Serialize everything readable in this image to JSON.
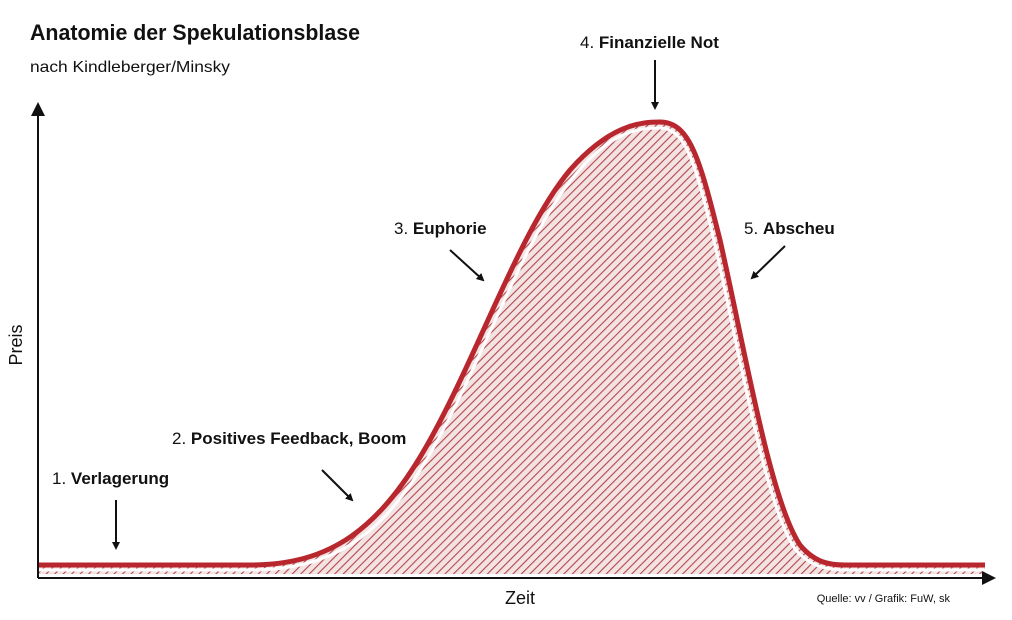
{
  "header": {
    "title": "Anatomie der Spekulationsblase",
    "subtitle": "nach Kindleberger/Minsky"
  },
  "axes": {
    "y_label": "Preis",
    "x_label": "Zeit"
  },
  "stages": [
    {
      "number": "1.",
      "label": "Verlagerung"
    },
    {
      "number": "2.",
      "label": "Positives Feedback, Boom"
    },
    {
      "number": "3.",
      "label": "Euphorie"
    },
    {
      "number": "4.",
      "label": "Finanzielle Not"
    },
    {
      "number": "5.",
      "label": "Abscheu"
    }
  ],
  "source": "Quelle: vv / Grafik: FuW, sk"
}
